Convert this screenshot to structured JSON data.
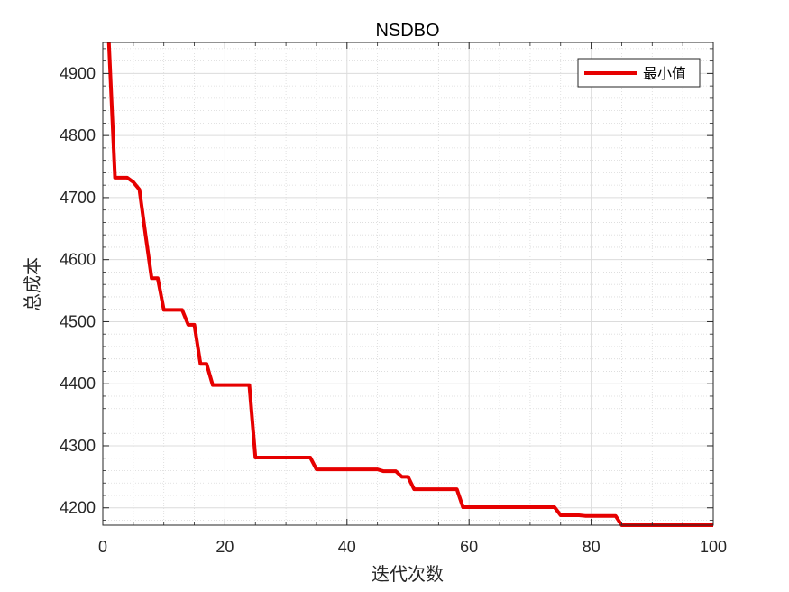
{
  "chart_data": {
    "type": "line",
    "title": "NSDBO",
    "xlabel": "迭代次数",
    "ylabel": "总成本",
    "xlim": [
      0,
      100
    ],
    "ylim": [
      4172,
      4950
    ],
    "xticks": [
      0,
      20,
      40,
      60,
      80,
      100
    ],
    "xtick_labels": [
      "0",
      "20",
      "40",
      "60",
      "80",
      "100"
    ],
    "yticks": [
      4200,
      4300,
      4400,
      4500,
      4600,
      4700,
      4800,
      4900
    ],
    "ytick_labels": [
      "4200",
      "4300",
      "4400",
      "4500",
      "4600",
      "4700",
      "4800",
      "4900"
    ],
    "grid": true,
    "minor_grid": true,
    "legend_position": "top-right",
    "series": [
      {
        "name": "最小值",
        "color": "#e60000",
        "x": [
          1,
          2,
          3,
          4,
          5,
          6,
          7,
          8,
          9,
          10,
          11,
          12,
          13,
          14,
          15,
          16,
          17,
          18,
          19,
          20,
          21,
          22,
          23,
          24,
          25,
          26,
          27,
          28,
          29,
          30,
          31,
          32,
          33,
          34,
          35,
          36,
          37,
          38,
          39,
          40,
          41,
          42,
          43,
          44,
          45,
          46,
          47,
          48,
          49,
          50,
          51,
          52,
          53,
          54,
          55,
          56,
          57,
          58,
          59,
          60,
          61,
          62,
          63,
          64,
          65,
          66,
          67,
          68,
          69,
          70,
          71,
          72,
          73,
          74,
          75,
          76,
          77,
          78,
          79,
          80,
          81,
          82,
          83,
          84,
          85,
          86,
          87,
          88,
          89,
          90,
          91,
          92,
          93,
          94,
          95,
          96,
          97,
          98,
          99,
          100
        ],
        "y": [
          4950,
          4732,
          4732,
          4732,
          4725,
          4713,
          4640,
          4570,
          4570,
          4519,
          4519,
          4519,
          4519,
          4495,
          4495,
          4432,
          4432,
          4398,
          4398,
          4398,
          4398,
          4398,
          4398,
          4398,
          4281,
          4281,
          4281,
          4281,
          4281,
          4281,
          4281,
          4281,
          4281,
          4281,
          4262,
          4262,
          4262,
          4262,
          4262,
          4262,
          4262,
          4262,
          4262,
          4262,
          4262,
          4259,
          4259,
          4259,
          4250,
          4250,
          4230,
          4230,
          4230,
          4230,
          4230,
          4230,
          4230,
          4230,
          4201,
          4201,
          4201,
          4201,
          4201,
          4201,
          4201,
          4201,
          4201,
          4201,
          4201,
          4201,
          4201,
          4201,
          4201,
          4201,
          4188,
          4188,
          4188,
          4188,
          4187,
          4187,
          4187,
          4187,
          4187,
          4187,
          4172,
          4172,
          4172,
          4172,
          4172,
          4172,
          4172,
          4172,
          4172,
          4172,
          4172,
          4172,
          4172,
          4172,
          4172,
          4172
        ]
      }
    ]
  }
}
